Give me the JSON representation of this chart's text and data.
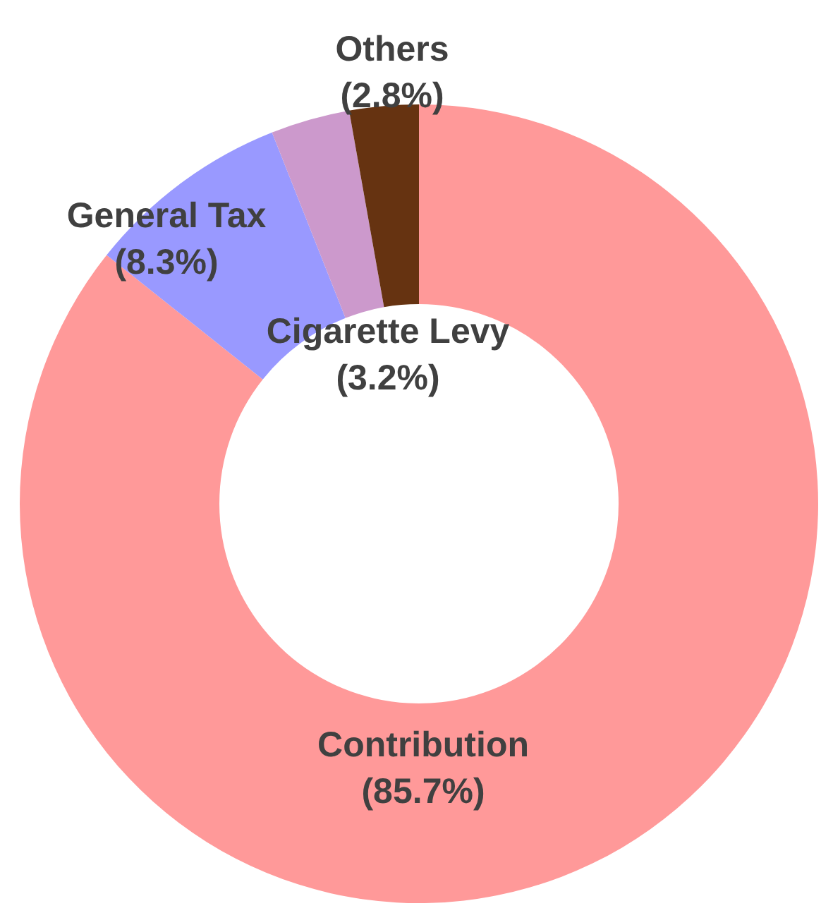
{
  "chart_data": {
    "type": "donut",
    "categories": [
      "Contribution",
      "General Tax",
      "Cigarette Levy",
      "Others"
    ],
    "values": [
      85.7,
      8.3,
      3.2,
      2.8
    ],
    "colors": [
      "#ff9999",
      "#9999ff",
      "#cc99cc",
      "#663311"
    ],
    "value_labels": [
      "(85.7%)",
      "(8.3%)",
      "(3.2%)",
      "(2.8%)"
    ],
    "legend": false
  }
}
